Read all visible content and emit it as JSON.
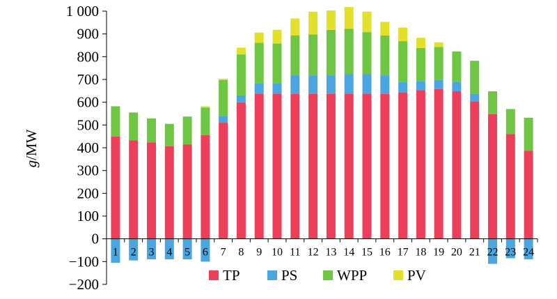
{
  "chart_data": {
    "type": "bar",
    "stacked": true,
    "xlabel": "",
    "ylabel_italic": "g",
    "ylabel_rest": "/MW",
    "ylim": [
      -200,
      1000
    ],
    "yticks": [
      -200,
      -100,
      0,
      100,
      200,
      300,
      400,
      500,
      600,
      700,
      800,
      900,
      1000
    ],
    "ytick_labels": [
      "−200",
      "−100",
      "0",
      "100",
      "200",
      "300",
      "400",
      "500",
      "600",
      "700",
      "800",
      "900",
      "1 000"
    ],
    "categories": [
      "1",
      "2",
      "3",
      "4",
      "5",
      "6",
      "7",
      "8",
      "9",
      "10",
      "11",
      "12",
      "13",
      "14",
      "15",
      "16",
      "17",
      "18",
      "19",
      "20",
      "21",
      "22",
      "23",
      "24"
    ],
    "grid": false,
    "legend_position": "bottom",
    "series": [
      {
        "name": "TP",
        "color": "#ee3f5a",
        "values": [
          450,
          432,
          424,
          407,
          415,
          455,
          510,
          600,
          638,
          638,
          638,
          638,
          638,
          638,
          638,
          638,
          643,
          653,
          658,
          648,
          602,
          548,
          460,
          387
        ]
      },
      {
        "name": "PS",
        "color": "#4aa6e0",
        "values": [
          -105,
          -95,
          -90,
          -90,
          -90,
          -100,
          30,
          30,
          45,
          45,
          80,
          80,
          80,
          85,
          85,
          80,
          45,
          40,
          40,
          40,
          35,
          -110,
          -85,
          -90
        ]
      },
      {
        "name": "WPP",
        "color": "#6ec643",
        "values": [
          132,
          123,
          105,
          98,
          122,
          122,
          158,
          180,
          178,
          175,
          175,
          180,
          200,
          200,
          185,
          175,
          180,
          145,
          145,
          135,
          145,
          100,
          110,
          145
        ]
      },
      {
        "name": "PV",
        "color": "#e3e02c",
        "values": [
          0,
          0,
          0,
          0,
          0,
          5,
          5,
          30,
          45,
          60,
          75,
          100,
          85,
          95,
          90,
          60,
          60,
          45,
          20,
          0,
          0,
          0,
          0,
          0
        ]
      }
    ]
  }
}
